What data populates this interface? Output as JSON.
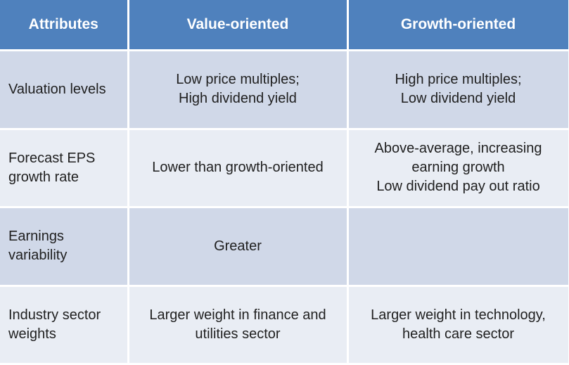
{
  "table": {
    "headers": [
      "Attributes",
      "Value-oriented",
      "Growth-oriented"
    ],
    "rows": [
      {
        "attribute": [
          "Valuation levels"
        ],
        "value": [
          "Low price multiples;",
          "High dividend yield"
        ],
        "growth": [
          "High price multiples;",
          "Low dividend yield"
        ]
      },
      {
        "attribute": [
          "Forecast EPS",
          "growth rate"
        ],
        "value": [
          "Lower than growth-oriented"
        ],
        "growth": [
          "Above-average, increasing",
          "earning growth",
          "Low dividend pay out ratio"
        ]
      },
      {
        "attribute": [
          "Earnings",
          "variability"
        ],
        "value": [
          "Greater"
        ],
        "growth": []
      },
      {
        "attribute": [
          "Industry sector",
          "weights"
        ],
        "value": [
          "Larger weight in finance and",
          "utilities  sector"
        ],
        "growth": [
          "Larger weight in technology,",
          "health care sector"
        ]
      }
    ]
  },
  "colors": {
    "header_bg": "#4f81bd",
    "header_text": "#ffffff",
    "row_light": "#e9edf4",
    "row_dark": "#d0d8e8",
    "body_text": "#1f1f1f"
  }
}
